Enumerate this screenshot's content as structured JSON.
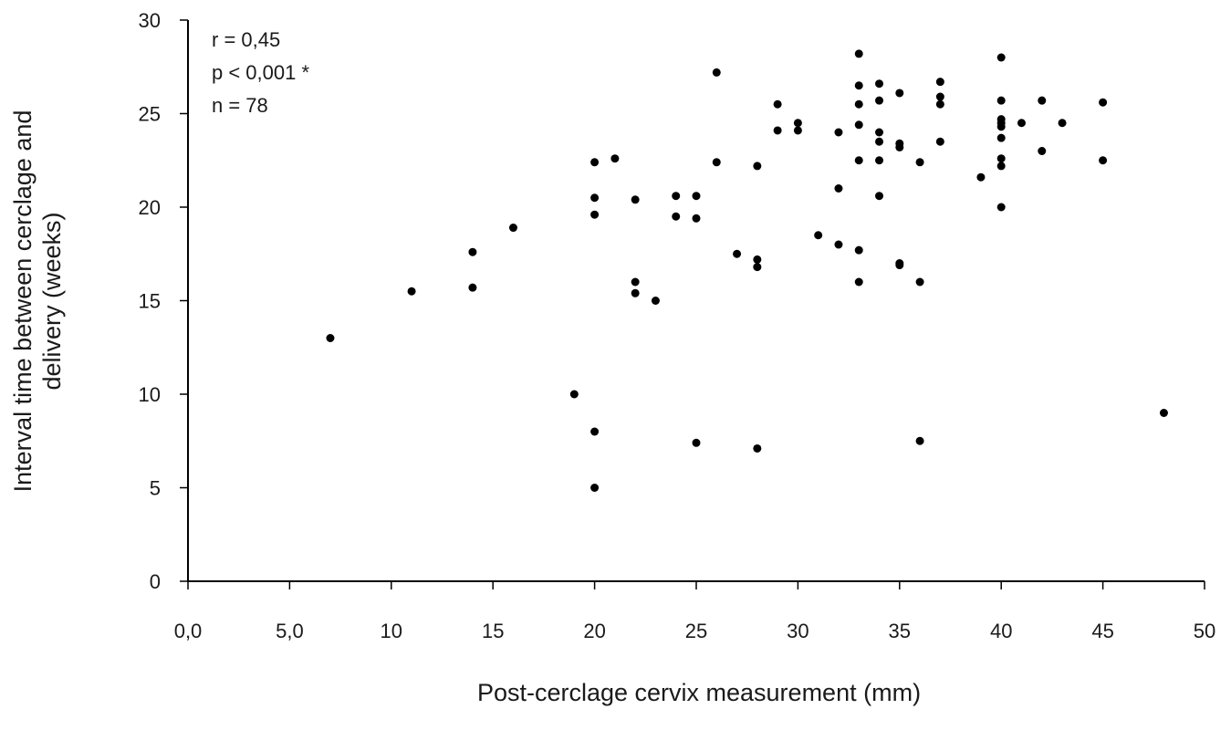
{
  "chart_data": {
    "type": "scatter",
    "xlabel": "Post-cerclage cervix measurement (mm)",
    "ylabel_lines": [
      "Interval time between cerclage and",
      "delivery (weeks)"
    ],
    "xlim": [
      0,
      50
    ],
    "ylim": [
      0,
      30
    ],
    "x_ticks": [
      0,
      5,
      10,
      15,
      20,
      25,
      30,
      35,
      40,
      45,
      50
    ],
    "x_tick_labels": [
      "0,0",
      "5,0",
      "10",
      "15",
      "20",
      "25",
      "30",
      "35",
      "40",
      "45",
      "50"
    ],
    "y_ticks": [
      0,
      5,
      10,
      15,
      20,
      25,
      30
    ],
    "y_tick_labels": [
      "0",
      "5",
      "10",
      "15",
      "20",
      "25",
      "30"
    ],
    "grid": false,
    "marker_color": "#000000",
    "annotations": [
      "r = 0,45",
      "p < 0,001 *",
      "n = 78"
    ],
    "points": [
      [
        7,
        13.0
      ],
      [
        11,
        15.5
      ],
      [
        14,
        17.6
      ],
      [
        14,
        15.7
      ],
      [
        16,
        18.9
      ],
      [
        19,
        10.0
      ],
      [
        20,
        22.4
      ],
      [
        20,
        20.5
      ],
      [
        20,
        19.6
      ],
      [
        20,
        8.0
      ],
      [
        20,
        5.0
      ],
      [
        21,
        22.6
      ],
      [
        22,
        20.4
      ],
      [
        22,
        16.0
      ],
      [
        22,
        15.4
      ],
      [
        23,
        15.0
      ],
      [
        24,
        20.6
      ],
      [
        24,
        19.5
      ],
      [
        25,
        20.6
      ],
      [
        25,
        19.4
      ],
      [
        25,
        7.4
      ],
      [
        26,
        27.2
      ],
      [
        26,
        22.4
      ],
      [
        27,
        17.5
      ],
      [
        28,
        22.2
      ],
      [
        28,
        17.2
      ],
      [
        28,
        16.8
      ],
      [
        28,
        7.1
      ],
      [
        29,
        25.5
      ],
      [
        29,
        24.1
      ],
      [
        30,
        24.5
      ],
      [
        30,
        24.1
      ],
      [
        31,
        18.5
      ],
      [
        32,
        24.0
      ],
      [
        32,
        21.0
      ],
      [
        32,
        18.0
      ],
      [
        33,
        28.2
      ],
      [
        33,
        26.5
      ],
      [
        33,
        25.5
      ],
      [
        33,
        24.4
      ],
      [
        33,
        22.5
      ],
      [
        33,
        17.7
      ],
      [
        33,
        16.0
      ],
      [
        34,
        26.6
      ],
      [
        34,
        25.7
      ],
      [
        34,
        24.0
      ],
      [
        34,
        23.5
      ],
      [
        34,
        22.5
      ],
      [
        34,
        20.6
      ],
      [
        35,
        26.1
      ],
      [
        35,
        23.4
      ],
      [
        35,
        23.2
      ],
      [
        35,
        17.0
      ],
      [
        35,
        16.9
      ],
      [
        36,
        22.4
      ],
      [
        36,
        16.0
      ],
      [
        36,
        7.5
      ],
      [
        37,
        26.7
      ],
      [
        37,
        25.9
      ],
      [
        37,
        25.5
      ],
      [
        37,
        23.5
      ],
      [
        39,
        21.6
      ],
      [
        40,
        28.0
      ],
      [
        40,
        25.7
      ],
      [
        40,
        24.7
      ],
      [
        40,
        24.5
      ],
      [
        40,
        24.3
      ],
      [
        40,
        23.7
      ],
      [
        40,
        22.6
      ],
      [
        40,
        22.2
      ],
      [
        40,
        20.0
      ],
      [
        41,
        24.5
      ],
      [
        42,
        25.7
      ],
      [
        42,
        23.0
      ],
      [
        43,
        24.5
      ],
      [
        45,
        25.6
      ],
      [
        45,
        22.5
      ],
      [
        48,
        9.0
      ]
    ]
  }
}
